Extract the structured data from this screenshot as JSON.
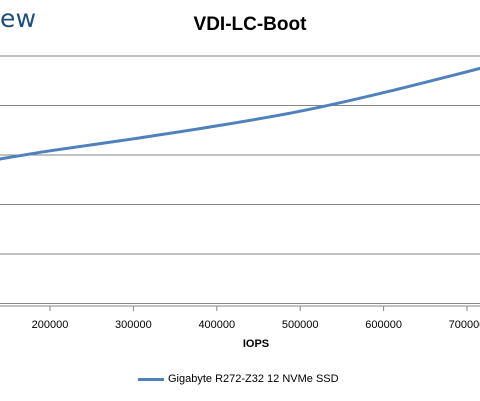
{
  "logo": {
    "text": "ew"
  },
  "chart_data": {
    "type": "line",
    "title": "VDI-LC-Boot",
    "xlabel": "IOPS",
    "ylabel": "",
    "x_ticks": [
      200000,
      300000,
      400000,
      500000,
      600000,
      700000
    ],
    "xlim": [
      140000,
      722000
    ],
    "series": [
      {
        "name": "Gigabyte R272-Z32 12 NVMe SSD",
        "color": "#4f81bd",
        "points": [
          [
            140000,
            0.98
          ],
          [
            200000,
            1.021
          ],
          [
            300000,
            1.082
          ],
          [
            400000,
            1.147
          ],
          [
            500000,
            1.221
          ],
          [
            600000,
            1.315
          ],
          [
            722000,
            1.444
          ]
        ]
      }
    ],
    "grid": true,
    "legend_position": "bottom"
  }
}
